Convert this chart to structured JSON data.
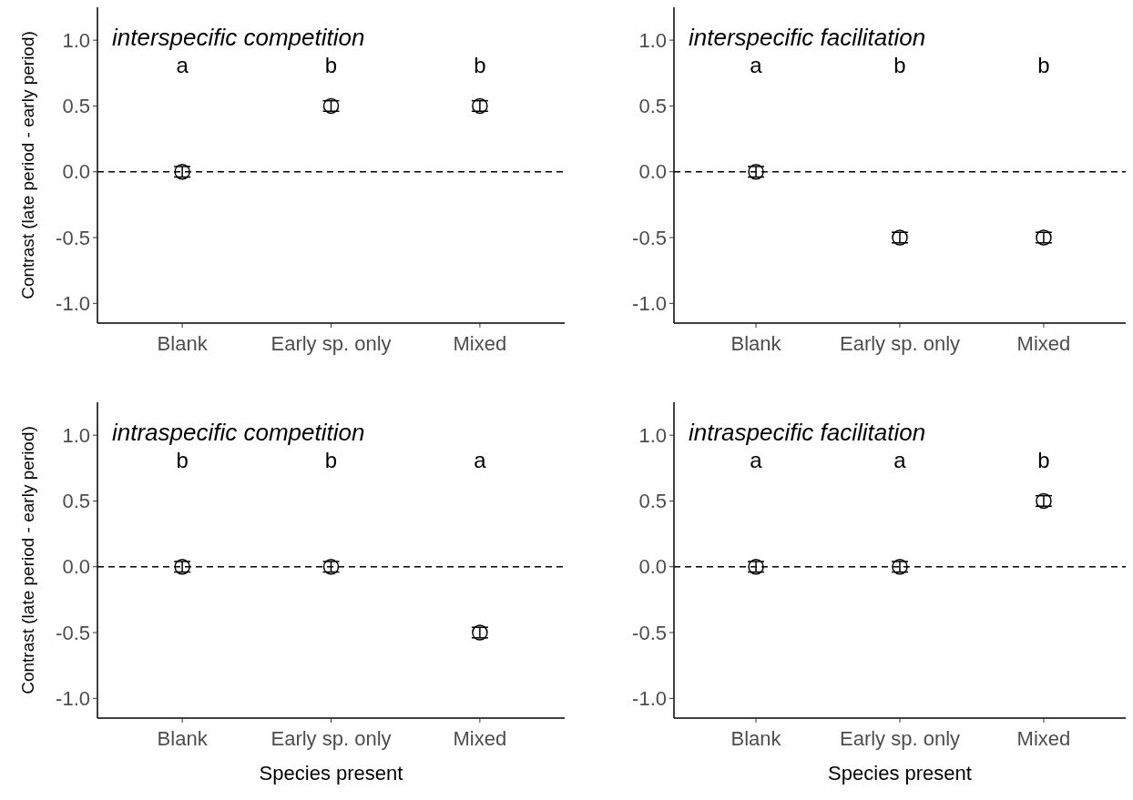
{
  "chart_data": [
    {
      "type": "scatter",
      "title": "interspecific competition",
      "ylabel": "Contrast (late period - early period)",
      "categories": [
        "Blank",
        "Early sp. only",
        "Mixed"
      ],
      "values": [
        0,
        0.5,
        0.5
      ],
      "errors": [
        0.04,
        0.04,
        0.04
      ],
      "color": "#000000",
      "marker": "circle",
      "ylim": [
        -1.15,
        1.25
      ],
      "yticks": [
        {
          "value": -1,
          "label": "-1.0"
        },
        {
          "value": -0.5,
          "label": "-0.5"
        },
        {
          "value": 0,
          "label": "0.0"
        },
        {
          "value": 0.5,
          "label": "0.5"
        },
        {
          "value": 1,
          "label": "1.0"
        }
      ],
      "ref_lines": [
        {
          "axis": "y",
          "value": 0,
          "line_style": "dashed"
        }
      ],
      "annotations": [
        "a",
        "b",
        "b"
      ]
    },
    {
      "type": "scatter",
      "title": "interspecific facilitation",
      "categories": [
        "Blank",
        "Early sp. only",
        "Mixed"
      ],
      "values": [
        0,
        -0.5,
        -0.5
      ],
      "errors": [
        0.04,
        0.04,
        0.04
      ],
      "color": "#000000",
      "marker": "circle",
      "ylim": [
        -1.15,
        1.25
      ],
      "yticks": [
        {
          "value": -1,
          "label": "-1.0"
        },
        {
          "value": -0.5,
          "label": "-0.5"
        },
        {
          "value": 0,
          "label": "0.0"
        },
        {
          "value": 0.5,
          "label": "0.5"
        },
        {
          "value": 1,
          "label": "1.0"
        }
      ],
      "ref_lines": [
        {
          "axis": "y",
          "value": 0,
          "line_style": "dashed"
        }
      ],
      "annotations": [
        "a",
        "b",
        "b"
      ]
    },
    {
      "type": "scatter",
      "title": "intraspecific competition",
      "ylabel": "Contrast (late period - early period)",
      "xlabel": "Species present",
      "categories": [
        "Blank",
        "Early sp. only",
        "Mixed"
      ],
      "values": [
        0,
        0,
        -0.5
      ],
      "errors": [
        0.04,
        0.04,
        0.04
      ],
      "color": "#000000",
      "marker": "circle",
      "ylim": [
        -1.15,
        1.25
      ],
      "yticks": [
        {
          "value": -1,
          "label": "-1.0"
        },
        {
          "value": -0.5,
          "label": "-0.5"
        },
        {
          "value": 0,
          "label": "0.0"
        },
        {
          "value": 0.5,
          "label": "0.5"
        },
        {
          "value": 1,
          "label": "1.0"
        }
      ],
      "ref_lines": [
        {
          "axis": "y",
          "value": 0,
          "line_style": "dashed"
        }
      ],
      "annotations": [
        "b",
        "b",
        "a"
      ]
    },
    {
      "type": "scatter",
      "title": "intraspecific facilitation",
      "xlabel": "Species present",
      "categories": [
        "Blank",
        "Early sp. only",
        "Mixed"
      ],
      "values": [
        0,
        0,
        0.5
      ],
      "errors": [
        0.04,
        0.04,
        0.04
      ],
      "color": "#000000",
      "marker": "circle",
      "ylim": [
        -1.15,
        1.25
      ],
      "yticks": [
        {
          "value": -1,
          "label": "-1.0"
        },
        {
          "value": -0.5,
          "label": "-0.5"
        },
        {
          "value": 0,
          "label": "0.0"
        },
        {
          "value": 0.5,
          "label": "0.5"
        },
        {
          "value": 1,
          "label": "1.0"
        }
      ],
      "ref_lines": [
        {
          "axis": "y",
          "value": 0,
          "line_style": "dashed"
        }
      ],
      "annotations": [
        "a",
        "a",
        "b"
      ]
    }
  ]
}
